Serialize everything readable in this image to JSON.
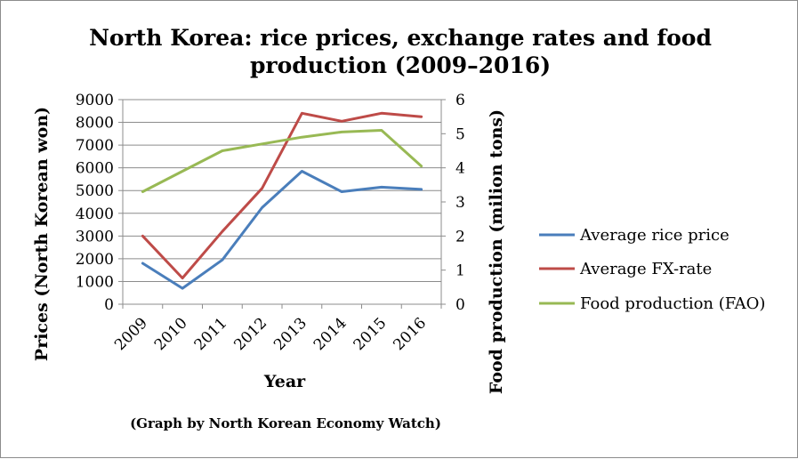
{
  "chart_data": {
    "type": "line",
    "title_line1": "North Korea: rice prices, exchange rates and food",
    "title_line2": "production (2009–2016)",
    "xlabel": "Year",
    "ylabel_left": "Prices (North Korean won)",
    "ylabel_right": "Food production (milion tons)",
    "footnote": "(Graph by North Korean Economy Watch)",
    "categories": [
      "2009",
      "2010",
      "2011",
      "2012",
      "2013",
      "2014",
      "2015",
      "2016"
    ],
    "ylim_left": [
      0,
      9000
    ],
    "yticks_left": [
      "0",
      "1000",
      "2000",
      "3000",
      "4000",
      "5000",
      "6000",
      "7000",
      "8000",
      "9000"
    ],
    "ylim_right": [
      0,
      6
    ],
    "yticks_right": [
      "0",
      "1",
      "2",
      "3",
      "4",
      "5",
      "6"
    ],
    "grid": true,
    "legend_position": "right",
    "series": [
      {
        "name": "Average rice price",
        "axis": "left",
        "color": "#4a7ebb",
        "values": [
          1800,
          700,
          1950,
          4250,
          5850,
          4950,
          5150,
          5050
        ]
      },
      {
        "name": "Average FX-rate",
        "axis": "left",
        "color": "#be4b48",
        "values": [
          3000,
          1150,
          3200,
          5100,
          8400,
          8050,
          8400,
          8250
        ]
      },
      {
        "name": "Food production (FAO)",
        "axis": "right",
        "color": "#98b954",
        "values": [
          3.3,
          3.9,
          4.5,
          4.7,
          4.9,
          5.05,
          5.1,
          4.05
        ]
      }
    ]
  }
}
